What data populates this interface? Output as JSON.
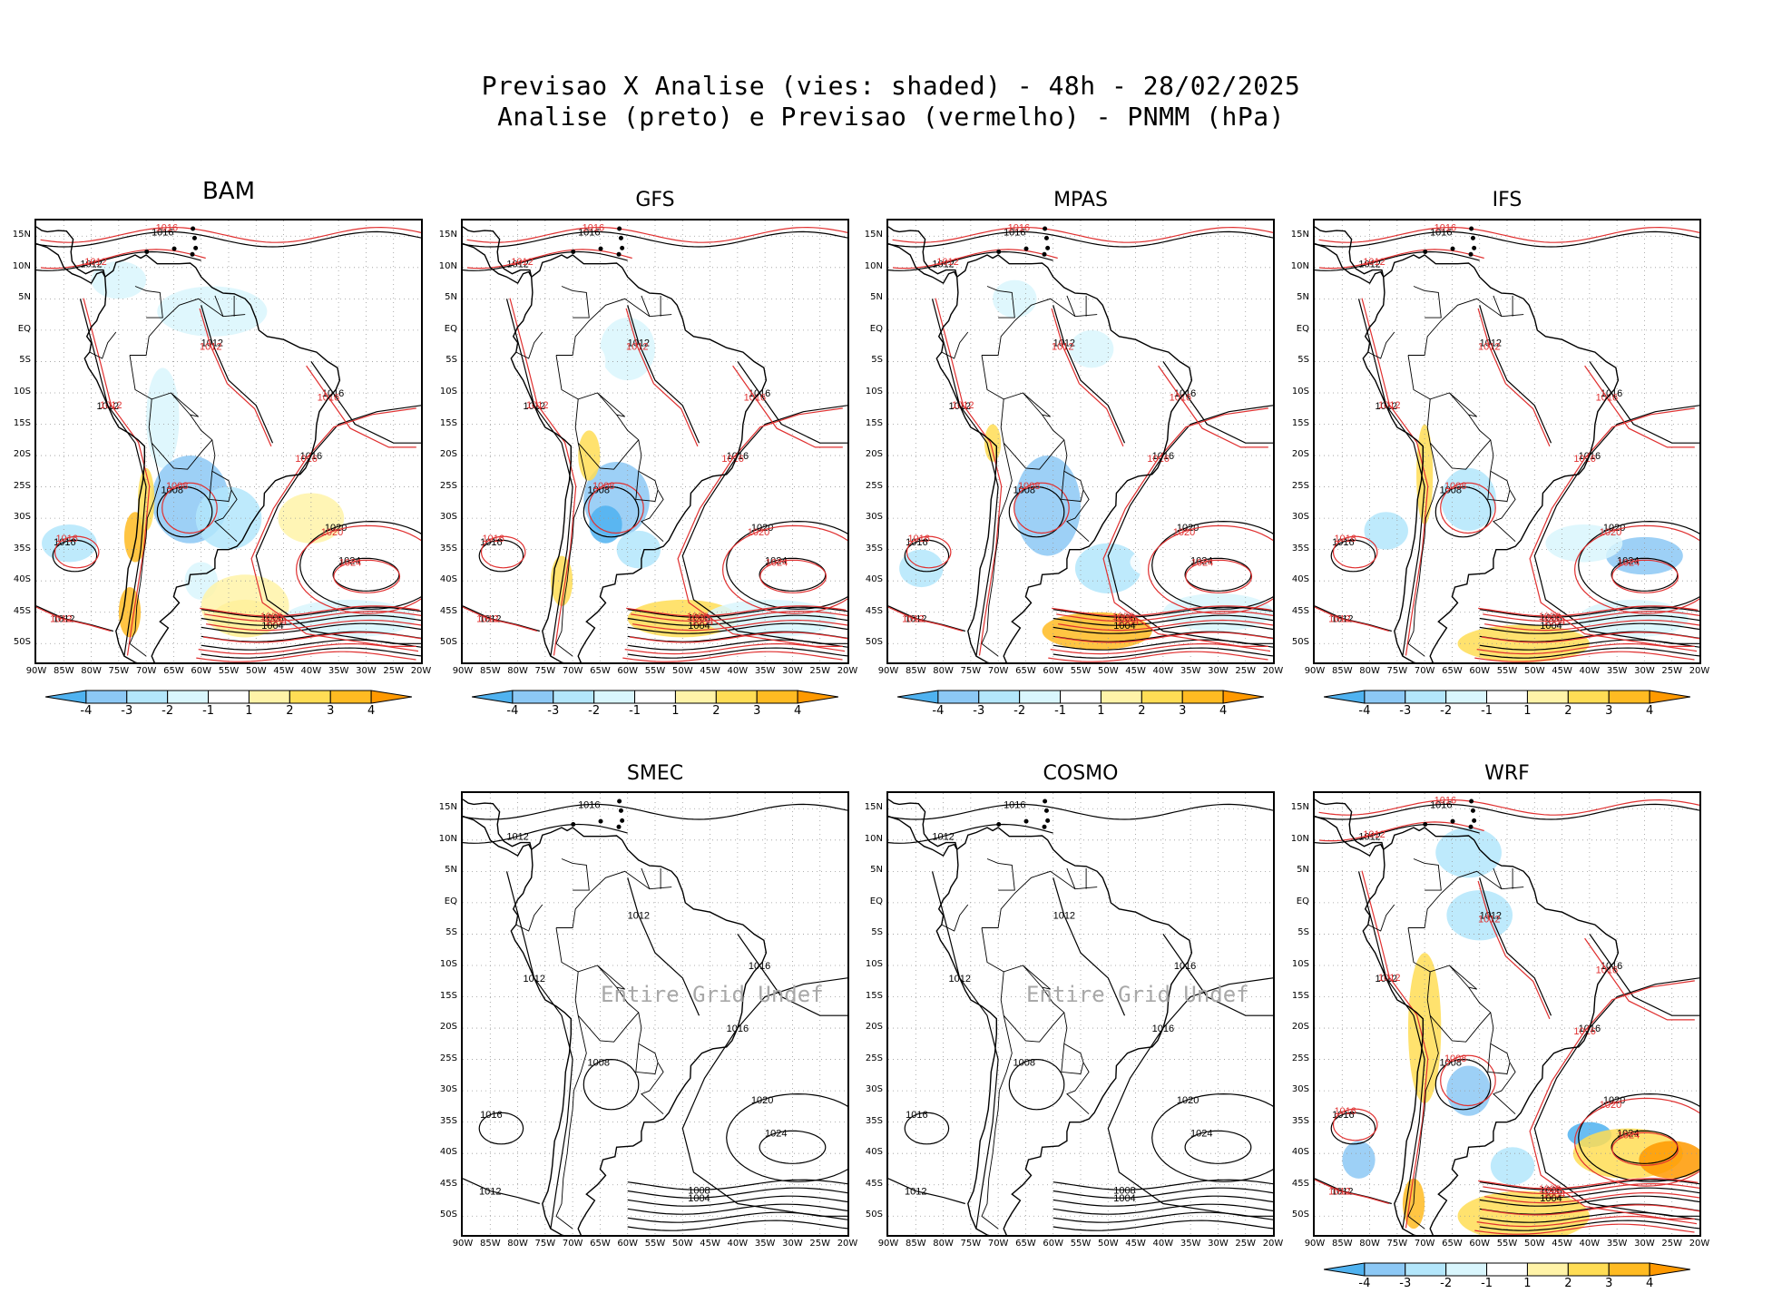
{
  "title": {
    "line1": "Previsao X Analise (vies: shaded) - 48h - 28/02/2025",
    "line2": "Analise (preto) e Previsao (vermelho) - PNMM (hPa)"
  },
  "axes": {
    "lat_labels": [
      "15N",
      "10N",
      "5N",
      "EQ",
      "5S",
      "10S",
      "15S",
      "20S",
      "25S",
      "30S",
      "35S",
      "40S",
      "45S",
      "50S"
    ],
    "lon_labels": [
      "90W",
      "85W",
      "80W",
      "75W",
      "70W",
      "65W",
      "60W",
      "55W",
      "50W",
      "45W",
      "40W",
      "35W",
      "30W",
      "25W",
      "20W"
    ]
  },
  "colorbar": {
    "labels": [
      "-4",
      "-3",
      "-2",
      "-1",
      "1",
      "2",
      "3",
      "4"
    ],
    "colors": [
      "#4fb2f0",
      "#8cc8f5",
      "#b3e6fb",
      "#d9f6fd",
      "#ffffff",
      "#fff3a8",
      "#ffdd55",
      "#ffbb22",
      "#ff9900"
    ]
  },
  "panels": [
    {
      "id": "bam",
      "name": "BAM",
      "has_forecast": true,
      "colorbar": true
    },
    {
      "id": "gfs",
      "name": "GFS",
      "has_forecast": true,
      "colorbar": true
    },
    {
      "id": "mpas",
      "name": "MPAS",
      "has_forecast": true,
      "colorbar": true
    },
    {
      "id": "ifs",
      "name": "IFS",
      "has_forecast": true,
      "colorbar": true
    },
    {
      "id": "smec",
      "name": "SMEC",
      "has_forecast": false,
      "colorbar": false,
      "undef_text": "Entire Grid Undef"
    },
    {
      "id": "cosmo",
      "name": "COSMO",
      "has_forecast": false,
      "colorbar": false,
      "undef_text": "Entire Grid Undef"
    },
    {
      "id": "wrf",
      "name": "WRF",
      "has_forecast": true,
      "colorbar": true
    }
  ],
  "contour_labels": {
    "analysis": [
      "1012",
      "1016",
      "1008",
      "1012",
      "1012",
      "1016",
      "1020",
      "1024",
      "1008",
      "1004",
      "1016",
      "1012"
    ],
    "forecast": [
      "1012",
      "1016",
      "1012",
      "1008",
      "1016",
      "1020",
      "1024",
      "1012",
      "1008",
      "1004",
      "1016"
    ]
  }
}
